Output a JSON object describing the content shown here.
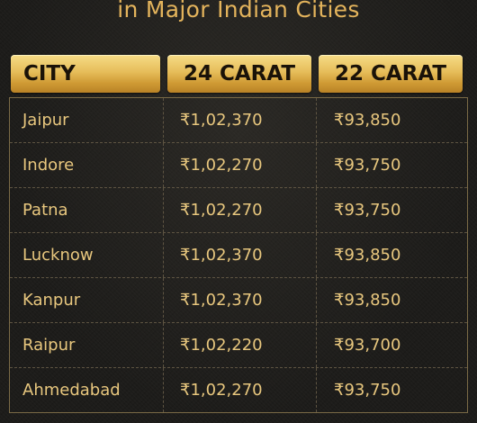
{
  "title": "in Major Indian Cities",
  "table": {
    "headers": [
      "CITY",
      "24 CARAT",
      "22 CARAT"
    ],
    "rows": [
      [
        "Jaipur",
        "₹1,02,370",
        "₹93,850"
      ],
      [
        "Indore",
        "₹1,02,270",
        "₹93,750"
      ],
      [
        "Patna",
        "₹1,02,270",
        "₹93,750"
      ],
      [
        "Lucknow",
        "₹1,02,370",
        "₹93,850"
      ],
      [
        "Kanpur",
        "₹1,02,370",
        "₹93,850"
      ],
      [
        "Raipur",
        "₹1,02,220",
        "₹93,700"
      ],
      [
        "Ahmedabad",
        "₹1,02,270",
        "₹93,750"
      ]
    ]
  },
  "colors": {
    "background": "#1d1c1a",
    "gold_text": "#e8c77e",
    "title_gold": "#e4b45c",
    "header_gold": "#e6bd5a",
    "header_text": "#1a1208"
  }
}
